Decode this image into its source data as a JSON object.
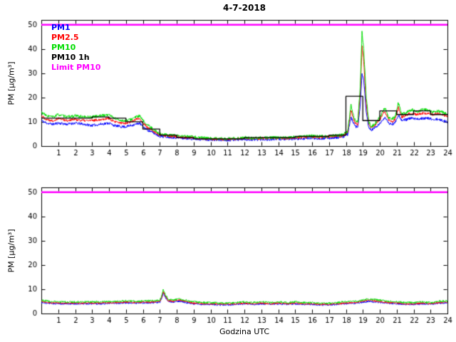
{
  "figure": {
    "title": "4-7-2018",
    "xlabel": "Godzina UTC",
    "ylabel": "PM [µg/m³]"
  },
  "chart_data": [
    {
      "type": "line",
      "title": "4-7-2018",
      "xlabel": "",
      "ylabel": "PM [µg/m³]",
      "xlim": [
        0,
        24
      ],
      "ylim": [
        0,
        52
      ],
      "xticks": [
        1,
        2,
        3,
        4,
        5,
        6,
        7,
        8,
        9,
        10,
        11,
        12,
        13,
        14,
        15,
        16,
        17,
        18,
        19,
        20,
        21,
        22,
        23,
        24
      ],
      "yticks": [
        0,
        10,
        20,
        30,
        40,
        50
      ],
      "grid": false,
      "legend": {
        "position": "top-left",
        "items": [
          {
            "label": "PM1",
            "color": "#0000FF"
          },
          {
            "label": "PM2.5",
            "color": "#FF0000"
          },
          {
            "label": "PM10",
            "color": "#00DD00"
          },
          {
            "label": "PM10 1h",
            "color": "#000000"
          },
          {
            "label": "Limit PM10",
            "color": "#FF00FF"
          }
        ]
      },
      "series": [
        {
          "name": "PM1",
          "color": "#0000FF",
          "width": 1,
          "noise": 0.55,
          "seed": 11,
          "x": [
            0,
            0.3,
            0.7,
            1,
            1.5,
            2,
            2.5,
            3,
            3.5,
            4,
            4.3,
            4.7,
            5,
            5.3,
            5.6,
            5.8,
            6,
            6.3,
            6.6,
            7,
            7.5,
            8,
            8.5,
            9,
            9.5,
            10,
            10.5,
            11,
            11.5,
            12,
            12.5,
            13,
            13.5,
            14,
            14.5,
            15,
            15.5,
            16,
            16.5,
            17,
            17.4,
            17.8,
            18.1,
            18.3,
            18.5,
            18.7,
            18.85,
            18.95,
            19.05,
            19.2,
            19.35,
            19.5,
            19.7,
            19.9,
            20.1,
            20.3,
            20.5,
            20.7,
            20.9,
            21.1,
            21.3,
            21.6,
            21.9,
            22.2,
            22.5,
            22.8,
            23.1,
            23.4,
            23.7,
            24
          ],
          "y": [
            10.5,
            9.5,
            9,
            9.5,
            9,
            9.5,
            9,
            8.5,
            9,
            9.5,
            8.5,
            8,
            8,
            8.5,
            9,
            9.5,
            8,
            6.5,
            5.5,
            4,
            3.8,
            3.4,
            3.2,
            3,
            2.8,
            2.6,
            2.5,
            2.5,
            2.7,
            2.8,
            2.6,
            2.8,
            2.7,
            2.9,
            2.8,
            3,
            3.1,
            3.3,
            3.1,
            3.3,
            3.5,
            3.7,
            4.8,
            12,
            8.5,
            7.5,
            17,
            30,
            27,
            14,
            7.5,
            6.5,
            7.5,
            8.5,
            10,
            12,
            9.5,
            9,
            9.5,
            13,
            10.5,
            11,
            11.5,
            11,
            11.5,
            11.5,
            11,
            11,
            10.5,
            10
          ]
        },
        {
          "name": "PM2.5",
          "color": "#FF0000",
          "width": 1,
          "noise": 0.55,
          "seed": 22,
          "x": [
            0,
            0.3,
            0.7,
            1,
            1.5,
            2,
            2.5,
            3,
            3.5,
            4,
            4.3,
            4.7,
            5,
            5.3,
            5.6,
            5.8,
            6,
            6.3,
            6.6,
            7,
            7.5,
            8,
            8.5,
            9,
            9.5,
            10,
            10.5,
            11,
            11.5,
            12,
            12.5,
            13,
            13.5,
            14,
            14.5,
            15,
            15.5,
            16,
            16.5,
            17,
            17.4,
            17.8,
            18.1,
            18.3,
            18.5,
            18.7,
            18.85,
            18.95,
            19.05,
            19.2,
            19.35,
            19.5,
            19.7,
            19.9,
            20.1,
            20.3,
            20.5,
            20.7,
            20.9,
            21.1,
            21.3,
            21.6,
            21.9,
            22.2,
            22.5,
            22.8,
            23.1,
            23.4,
            23.7,
            24
          ],
          "y": [
            12.5,
            11,
            10.5,
            11.5,
            10.5,
            11,
            10.5,
            10.5,
            11,
            11.5,
            10,
            9.5,
            9.5,
            10,
            11,
            11.5,
            9.5,
            7.5,
            6.2,
            4.5,
            4.2,
            3.8,
            3.6,
            3.4,
            3.1,
            2.9,
            2.8,
            2.8,
            3,
            3.2,
            3,
            3.2,
            3.1,
            3.3,
            3.2,
            3.5,
            3.6,
            3.8,
            3.6,
            3.8,
            4,
            4.2,
            5.5,
            15,
            10,
            9,
            22,
            41,
            35,
            17,
            9,
            7.5,
            8.5,
            10,
            12,
            14.5,
            11,
            10,
            11,
            16,
            12,
            13,
            13.5,
            13,
            13.5,
            13.5,
            13,
            13.5,
            13,
            12
          ]
        },
        {
          "name": "PM10",
          "color": "#00DD00",
          "width": 1,
          "noise": 0.6,
          "seed": 33,
          "x": [
            0,
            0.3,
            0.7,
            1,
            1.5,
            2,
            2.5,
            3,
            3.5,
            4,
            4.3,
            4.7,
            5,
            5.3,
            5.6,
            5.8,
            6,
            6.3,
            6.6,
            7,
            7.5,
            8,
            8.5,
            9,
            9.5,
            10,
            10.5,
            11,
            11.5,
            12,
            12.5,
            13,
            13.5,
            14,
            14.5,
            15,
            15.5,
            16,
            16.5,
            17,
            17.4,
            17.8,
            18.1,
            18.3,
            18.5,
            18.7,
            18.85,
            18.95,
            19.05,
            19.2,
            19.35,
            19.5,
            19.7,
            19.9,
            20.1,
            20.3,
            20.5,
            20.7,
            20.9,
            21.1,
            21.3,
            21.6,
            21.9,
            22.2,
            22.5,
            22.8,
            23.1,
            23.4,
            23.7,
            24
          ],
          "y": [
            14,
            12.5,
            12,
            13,
            12,
            12.5,
            12,
            12,
            12.5,
            13,
            11.5,
            10.5,
            10.5,
            11,
            12,
            12.5,
            10.5,
            8.5,
            7,
            5,
            4.6,
            4.2,
            4,
            3.8,
            3.4,
            3.2,
            3,
            3,
            3.2,
            3.5,
            3.3,
            3.5,
            3.4,
            3.6,
            3.5,
            3.8,
            4,
            4.2,
            4,
            4.2,
            4.4,
            4.6,
            6,
            17,
            11,
            10,
            25,
            47,
            40,
            20,
            10,
            8,
            9,
            11,
            13,
            16,
            12,
            11,
            12,
            18,
            13,
            14,
            15,
            14,
            15,
            15,
            14,
            14.5,
            14,
            13
          ]
        },
        {
          "name": "PM10 1h",
          "color": "#000000",
          "width": 1.3,
          "step": true,
          "values": [
            11.5,
            11.5,
            11.5,
            12,
            11.5,
            10,
            7,
            4.5,
            3.5,
            3,
            3,
            3,
            3.5,
            3.5,
            3.5,
            4,
            4,
            4.5,
            20.5,
            10.5,
            14.5,
            13,
            14.5,
            13
          ]
        },
        {
          "name": "Limit PM10",
          "color": "#FF00FF",
          "width": 2.5,
          "noise": 0,
          "x": [
            0,
            24
          ],
          "y": [
            50,
            50
          ]
        }
      ]
    },
    {
      "type": "line",
      "title": "",
      "xlabel": "Godzina UTC",
      "ylabel": "PM [µg/m³]",
      "xlim": [
        0,
        24
      ],
      "ylim": [
        0,
        52
      ],
      "xticks": [
        1,
        2,
        3,
        4,
        5,
        6,
        7,
        8,
        9,
        10,
        11,
        12,
        13,
        14,
        15,
        16,
        17,
        18,
        19,
        20,
        21,
        22,
        23,
        24
      ],
      "yticks": [
        0,
        10,
        20,
        30,
        40,
        50
      ],
      "grid": false,
      "series": [
        {
          "name": "PM1",
          "color": "#0000FF",
          "width": 1,
          "noise": 0.35,
          "seed": 44,
          "x": [
            0,
            0.5,
            1,
            1.5,
            2,
            2.5,
            3,
            3.5,
            4,
            4.5,
            5,
            5.5,
            6,
            6.5,
            7,
            7.1,
            7.2,
            7.35,
            7.5,
            7.8,
            8,
            8.2,
            8.5,
            9,
            9.5,
            10,
            10.5,
            11,
            11.5,
            12,
            12.5,
            13,
            13.5,
            14,
            14.5,
            15,
            15.5,
            16,
            16.5,
            17,
            17.5,
            18,
            18.5,
            19,
            19.3,
            19.6,
            20,
            20.5,
            21,
            21.5,
            22,
            22.5,
            23,
            23.5,
            24
          ],
          "y": [
            4.5,
            4.2,
            4,
            4,
            4,
            4,
            4,
            4,
            4.2,
            4.2,
            4.4,
            4.2,
            4.4,
            4.4,
            4.6,
            6,
            8.5,
            6.5,
            5,
            4.6,
            5,
            5,
            4.6,
            4,
            3.8,
            3.8,
            3.6,
            3.5,
            3.8,
            4,
            3.8,
            4,
            3.8,
            4,
            3.8,
            4,
            3.8,
            3.8,
            3.5,
            3.5,
            3.8,
            4,
            4.2,
            4.6,
            5,
            4.8,
            4.6,
            4.2,
            4,
            3.8,
            3.8,
            4,
            3.8,
            4.2,
            4.4
          ]
        },
        {
          "name": "PM2.5",
          "color": "#FF0000",
          "width": 1,
          "noise": 0.35,
          "seed": 55,
          "x": [
            0,
            0.5,
            1,
            1.5,
            2,
            2.5,
            3,
            3.5,
            4,
            4.5,
            5,
            5.5,
            6,
            6.5,
            7,
            7.1,
            7.2,
            7.35,
            7.5,
            7.8,
            8,
            8.2,
            8.5,
            9,
            9.5,
            10,
            10.5,
            11,
            11.5,
            12,
            12.5,
            13,
            13.5,
            14,
            14.5,
            15,
            15.5,
            16,
            16.5,
            17,
            17.5,
            18,
            18.5,
            19,
            19.3,
            19.6,
            20,
            20.5,
            21,
            21.5,
            22,
            22.5,
            23,
            23.5,
            24
          ],
          "y": [
            5,
            4.5,
            4.3,
            4.3,
            4.3,
            4.3,
            4.3,
            4.3,
            4.5,
            4.5,
            4.7,
            4.5,
            4.7,
            4.7,
            5,
            6.5,
            9,
            7,
            5.3,
            5,
            5.5,
            5.5,
            5,
            4.3,
            4,
            4,
            3.9,
            3.8,
            4,
            4.3,
            4,
            4.3,
            4,
            4.3,
            4,
            4.3,
            4,
            4,
            3.8,
            3.8,
            4,
            4.3,
            4.5,
            5,
            5.5,
            5.3,
            5,
            4.5,
            4.3,
            4,
            4,
            4.3,
            4,
            4.5,
            4.7
          ]
        },
        {
          "name": "PM10",
          "color": "#00DD00",
          "width": 1,
          "noise": 0.4,
          "seed": 66,
          "x": [
            0,
            0.5,
            1,
            1.5,
            2,
            2.5,
            3,
            3.5,
            4,
            4.5,
            5,
            5.5,
            6,
            6.5,
            7,
            7.1,
            7.2,
            7.35,
            7.5,
            7.8,
            8,
            8.2,
            8.5,
            9,
            9.5,
            10,
            10.5,
            11,
            11.5,
            12,
            12.5,
            13,
            13.5,
            14,
            14.5,
            15,
            15.5,
            16,
            16.5,
            17,
            17.5,
            18,
            18.5,
            19,
            19.3,
            19.6,
            20,
            20.5,
            21,
            21.5,
            22,
            22.5,
            23,
            23.5,
            24
          ],
          "y": [
            5.5,
            5,
            4.8,
            4.8,
            4.8,
            4.8,
            4.8,
            4.8,
            5,
            5,
            5.2,
            5,
            5.2,
            5.2,
            5.5,
            7,
            10,
            7.5,
            5.8,
            5.5,
            6,
            6,
            5.5,
            4.8,
            4.5,
            4.5,
            4.3,
            4.2,
            4.5,
            4.8,
            4.5,
            4.8,
            4.5,
            4.8,
            4.5,
            4.8,
            4.5,
            4.5,
            4.2,
            4.2,
            4.5,
            4.8,
            5,
            5.5,
            6,
            5.8,
            5.5,
            5,
            4.8,
            4.5,
            4.5,
            4.8,
            4.5,
            5,
            5.2
          ]
        },
        {
          "name": "Limit PM10",
          "color": "#FF00FF",
          "width": 2.5,
          "noise": 0,
          "x": [
            0,
            24
          ],
          "y": [
            50,
            50
          ]
        }
      ]
    }
  ]
}
